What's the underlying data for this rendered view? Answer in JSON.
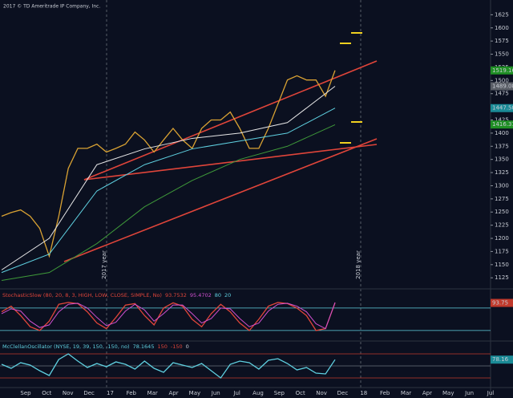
{
  "copyright": "2017 © TD Ameritrade IP Company, Inc.",
  "x_axis": {
    "labels": [
      "Sep",
      "Oct",
      "Nov",
      "Dec",
      "17",
      "Feb",
      "Mar",
      "Apr",
      "May",
      "Jun",
      "Jul",
      "Aug",
      "Sep",
      "Oct",
      "Nov",
      "Dec",
      "18",
      "Feb",
      "Mar",
      "Apr",
      "May",
      "Jun",
      "Jul"
    ]
  },
  "year_markers": [
    "2017 year",
    "2018 year"
  ],
  "chart_data": [
    {
      "type": "line",
      "ylim": [
        1107,
        1653
      ],
      "yticks": [
        1125,
        1150,
        1175,
        1200,
        1225,
        1250,
        1275,
        1300,
        1325,
        1350,
        1375,
        1400,
        1425,
        1450,
        1475,
        1500,
        1525,
        1550,
        1575,
        1600,
        1625
      ],
      "series": [
        {
          "color": "#d9a233",
          "values": [
            1242,
            1249,
            1254,
            1242,
            1219,
            1166,
            1242,
            1333,
            1371,
            1371,
            1379,
            1364,
            1371,
            1379,
            1402,
            1387,
            1364,
            1387,
            1409,
            1387,
            1371,
            1409,
            1425,
            1425,
            1440,
            1409,
            1371,
            1371,
            1409,
            1455,
            1501,
            1509,
            1501,
            1501,
            1470,
            1519.16
          ]
        },
        {
          "color": "#e6e6e6",
          "values": [
            1140,
            1200,
            1340,
            1370,
            1390,
            1400,
            1420,
            1489
          ]
        },
        {
          "color": "#5fd0e0",
          "values": [
            1135,
            1170,
            1290,
            1340,
            1370,
            1385,
            1400,
            1447.5
          ]
        },
        {
          "color": "#3f9a3a",
          "values": [
            1120,
            1135,
            1190,
            1260,
            1310,
            1350,
            1375,
            1416
          ]
        }
      ],
      "markers": [
        {
          "value": 1519.16,
          "color": "#1f8f24"
        },
        {
          "value": 1489.08,
          "color": "#5a5e66"
        },
        {
          "value": 1447.5,
          "label": "1447.50",
          "color": "#1a8a96"
        },
        {
          "value": 1416.31,
          "color": "#1f8f24"
        }
      ]
    },
    {
      "type": "line",
      "title": "StochasticSlow (80, 20, 8, 3, HIGH, LOW, CLOSE, SIMPLE, No)",
      "title_color": "#e0453a",
      "readouts": [
        {
          "value": 93.7532,
          "color": "#e0453a"
        },
        {
          "value": 95.4702,
          "color": "#d050d0"
        },
        {
          "value": 80,
          "color": "#5fd0e0"
        },
        {
          "value": 20,
          "color": "#5fd0e0"
        }
      ],
      "ylim": [
        -6,
        127
      ],
      "levels": [
        80,
        20
      ],
      "level_color": "#5fd0e0",
      "series": [
        {
          "color": "#e0453a",
          "values": [
            70,
            85,
            60,
            30,
            20,
            45,
            90,
            95,
            92,
            70,
            40,
            25,
            55,
            88,
            92,
            60,
            35,
            80,
            94,
            85,
            50,
            30,
            65,
            90,
            70,
            40,
            20,
            50,
            85,
            95,
            92,
            80,
            60,
            20,
            25,
            94
          ]
        },
        {
          "color": "#d050d0",
          "values": [
            65,
            78,
            72,
            45,
            28,
            35,
            70,
            90,
            93,
            80,
            55,
            33,
            42,
            72,
            90,
            75,
            45,
            65,
            88,
            88,
            65,
            40,
            52,
            80,
            78,
            52,
            30,
            40,
            72,
            90,
            93,
            85,
            70,
            38,
            25,
            95
          ]
        }
      ],
      "markers": [
        {
          "value": 93.75,
          "color": "#c0392b"
        }
      ]
    },
    {
      "type": "line",
      "title": "McClellanOscillator (NYSE, 19, 39, 150, -150, no)",
      "title_color": "#5fd0e0",
      "readouts": [
        {
          "value": 78.1645,
          "color": "#5fd0e0"
        },
        {
          "value": 150,
          "color": "#e0453a"
        },
        {
          "value": -150,
          "color": "#e0453a"
        },
        {
          "value": 0,
          "color": "#c8ccd4"
        }
      ],
      "ylim": [
        -260,
        300
      ],
      "levels": [
        150,
        -150,
        0
      ],
      "level_color": "#c0392b",
      "series": [
        {
          "color": "#5fd0e0",
          "values": [
            20,
            -30,
            40,
            10,
            -60,
            -120,
            80,
            150,
            60,
            -20,
            30,
            -10,
            50,
            20,
            -40,
            60,
            -30,
            -80,
            40,
            10,
            -20,
            30,
            -60,
            -150,
            20,
            60,
            40,
            -40,
            70,
            90,
            30,
            -50,
            -20,
            -90,
            -100,
            78
          ]
        }
      ],
      "markers": [
        {
          "value": 78.16,
          "color": "#1a8a96"
        }
      ]
    }
  ]
}
